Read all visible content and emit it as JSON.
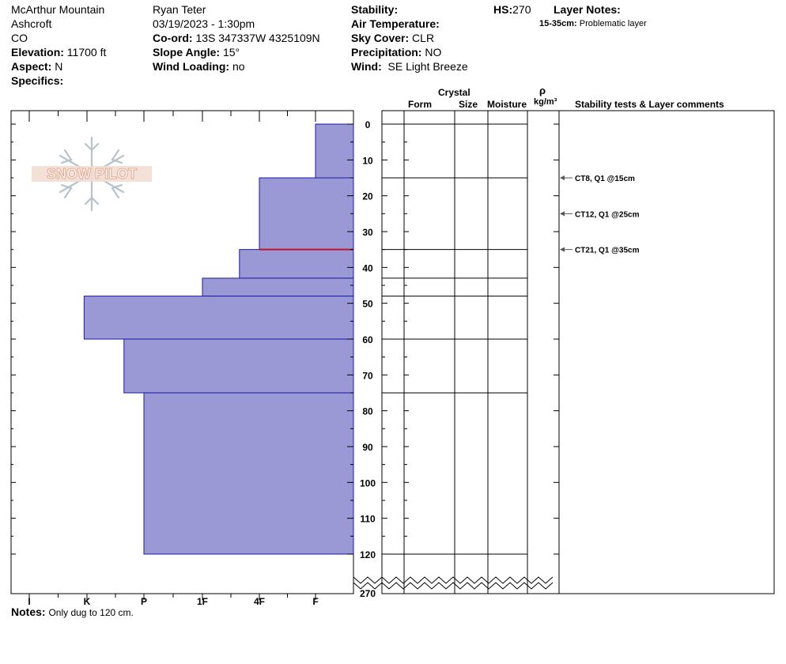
{
  "header": {
    "location": "McArthur Mountain",
    "region": "Ashcroft",
    "state": "CO",
    "elevation_label": "Elevation:",
    "elevation_value": "11700 ft",
    "aspect_label": "Aspect:",
    "aspect_value": "N",
    "specifics_label": "Specifics:",
    "observer": "Ryan Teter",
    "datetime": "03/19/2023 - 1:30pm",
    "coord_label": "Co-ord:",
    "coord_value": "13S 347337W 4325109N",
    "slope_label": "Slope Angle:",
    "slope_value": "15°",
    "wind_loading_label": "Wind Loading:",
    "wind_loading_value": "no",
    "stability_label": "Stability:",
    "air_temp_label": "Air Temperature:",
    "sky_label": "Sky Cover:",
    "sky_value": "CLR",
    "precip_label": "Precipitation:",
    "precip_value": "NO",
    "wind_label": "Wind:",
    "wind_value": "SE  Light Breeze",
    "hs_label": "HS:",
    "hs_value": "270",
    "layer_notes_label": "Layer Notes:",
    "layer_note_range": "15-35cm:",
    "layer_note_text": "Problematic layer"
  },
  "columns": {
    "crystal": "Crystal",
    "form": "Form",
    "size": "Size",
    "moisture": "Moisture",
    "rho": "ρ",
    "density_unit": "kg/m³",
    "comments": "Stability tests & Layer comments"
  },
  "logo_text": "SNOW PILOT",
  "notes": {
    "label": "Notes:",
    "text": "Only dug to 120 cm."
  },
  "chart_data": {
    "type": "bar",
    "orientation": "horizontal",
    "title": "",
    "hardness_ticks": [
      "I",
      "K",
      "P",
      "1F",
      "4F",
      "F"
    ],
    "depth_ticks": [
      0,
      10,
      20,
      30,
      40,
      50,
      60,
      70,
      80,
      90,
      100,
      110,
      120
    ],
    "depth_bottom_label": "270",
    "depth_range": [
      0,
      120
    ],
    "layers": [
      {
        "top": 0,
        "bottom": 15,
        "hardness": "F"
      },
      {
        "top": 15,
        "bottom": 35,
        "hardness": "4F"
      },
      {
        "top": 35,
        "bottom": 43,
        "hardness": "4F-"
      },
      {
        "top": 43,
        "bottom": 48,
        "hardness": "1F"
      },
      {
        "top": 48,
        "bottom": 60,
        "hardness": "K-"
      },
      {
        "top": 60,
        "bottom": 75,
        "hardness": "P+"
      },
      {
        "top": 75,
        "bottom": 120,
        "hardness": "P"
      }
    ],
    "hardness_index": {
      "I": 0,
      "K-": 0.95,
      "K": 1,
      "P+": 1.65,
      "P": 2,
      "1F": 3,
      "4F-": 3.65,
      "4F": 4,
      "F": 5
    },
    "boundaries": [
      0,
      15,
      35,
      43,
      48,
      60,
      75,
      120
    ],
    "problem_layer_depth": 35,
    "stability_tests": [
      {
        "depth": 15,
        "text": "CT8, Q1 @15cm"
      },
      {
        "depth": 25,
        "text": "CT12, Q1 @25cm"
      },
      {
        "depth": 35,
        "text": "CT21, Q1 @35cm"
      }
    ],
    "colors": {
      "bar_fill": "#9a99d6",
      "bar_edge": "#1a1aa6",
      "problem": "#c0142a",
      "arrow": "#555555"
    }
  }
}
